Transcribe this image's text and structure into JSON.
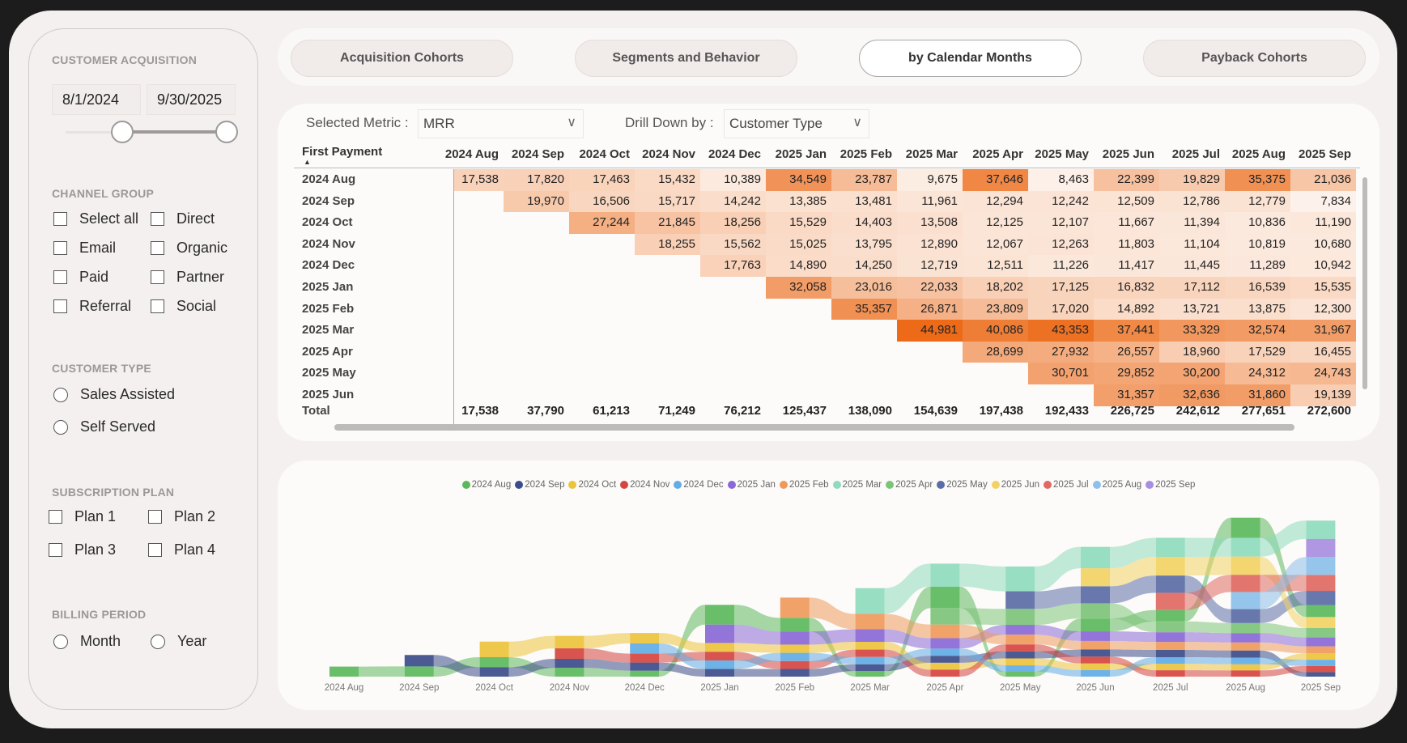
{
  "sidebar": {
    "acquisition": {
      "title": "CUSTOMER ACQUISITION",
      "start_date": "8/1/2024",
      "end_date": "9/30/2025"
    },
    "channel": {
      "title": "CHANNEL GROUP",
      "options": [
        "Select all",
        "Direct",
        "Email",
        "Organic",
        "Paid",
        "Partner",
        "Referral",
        "Social"
      ]
    },
    "customer_type": {
      "title": "CUSTOMER TYPE",
      "options": [
        "Sales Assisted",
        "Self Served"
      ]
    },
    "plan": {
      "title": "SUBSCRIPTION PLAN",
      "options": [
        "Plan 1",
        "Plan 2",
        "Plan 3",
        "Plan 4"
      ]
    },
    "billing": {
      "title": "BILLING PERIOD",
      "options": [
        "Month",
        "Year"
      ]
    }
  },
  "tabs": [
    {
      "label": "Acquisition Cohorts",
      "active": false
    },
    {
      "label": "Segments and Behavior",
      "active": false
    },
    {
      "label": "by Calendar Months",
      "active": true
    },
    {
      "label": "Payback Cohorts",
      "active": false
    }
  ],
  "controls": {
    "metric_label": "Selected Metric :",
    "metric_value": "MRR",
    "drill_label": "Drill Down by :",
    "drill_value": "Customer Type"
  },
  "table": {
    "row_header": "First Payment",
    "total_label": "Total",
    "heat_colors": [
      "#fdf4ee",
      "#ec6a18"
    ],
    "columns": [
      "2024 Aug",
      "2024 Sep",
      "2024 Oct",
      "2024 Nov",
      "2024 Dec",
      "2025 Jan",
      "2025 Feb",
      "2025 Mar",
      "2025 Apr",
      "2025 May",
      "2025 Jun",
      "2025 Jul",
      "2025 Aug",
      "2025 Sep"
    ],
    "rows": [
      {
        "label": "2024 Aug",
        "values": [
          "17,538",
          "17,820",
          "17,463",
          "15,432",
          "10,389",
          "34,549",
          "23,787",
          "9,675",
          "37,646",
          "8,463",
          "22,399",
          "19,829",
          "35,375",
          "21,036"
        ]
      },
      {
        "label": "2024 Sep",
        "values": [
          "",
          "19,970",
          "16,506",
          "15,717",
          "14,242",
          "13,385",
          "13,481",
          "11,961",
          "12,294",
          "12,242",
          "12,509",
          "12,786",
          "12,779",
          "7,834"
        ]
      },
      {
        "label": "2024 Oct",
        "values": [
          "",
          "",
          "27,244",
          "21,845",
          "18,256",
          "15,529",
          "14,403",
          "13,508",
          "12,125",
          "12,107",
          "11,667",
          "11,394",
          "10,836",
          "11,190"
        ]
      },
      {
        "label": "2024 Nov",
        "values": [
          "",
          "",
          "",
          "18,255",
          "15,562",
          "15,025",
          "13,795",
          "12,890",
          "12,067",
          "12,263",
          "11,803",
          "11,104",
          "10,819",
          "10,680"
        ]
      },
      {
        "label": "2024 Dec",
        "values": [
          "",
          "",
          "",
          "",
          "17,763",
          "14,890",
          "14,250",
          "12,719",
          "12,511",
          "11,226",
          "11,417",
          "11,445",
          "11,289",
          "10,942"
        ]
      },
      {
        "label": "2025 Jan",
        "values": [
          "",
          "",
          "",
          "",
          "",
          "32,058",
          "23,016",
          "22,033",
          "18,202",
          "17,125",
          "16,832",
          "17,112",
          "16,539",
          "15,535"
        ]
      },
      {
        "label": "2025 Feb",
        "values": [
          "",
          "",
          "",
          "",
          "",
          "",
          "35,357",
          "26,871",
          "23,809",
          "17,020",
          "14,892",
          "13,721",
          "13,875",
          "12,300"
        ]
      },
      {
        "label": "2025 Mar",
        "values": [
          "",
          "",
          "",
          "",
          "",
          "",
          "",
          "44,981",
          "40,086",
          "43,353",
          "37,441",
          "33,329",
          "32,574",
          "31,967"
        ]
      },
      {
        "label": "2025 Apr",
        "values": [
          "",
          "",
          "",
          "",
          "",
          "",
          "",
          "",
          "28,699",
          "27,932",
          "26,557",
          "18,960",
          "17,529",
          "16,455"
        ]
      },
      {
        "label": "2025 May",
        "values": [
          "",
          "",
          "",
          "",
          "",
          "",
          "",
          "",
          "",
          "30,701",
          "29,852",
          "30,200",
          "24,312",
          "24,743"
        ]
      },
      {
        "label": "2025 Jun",
        "values": [
          "",
          "",
          "",
          "",
          "",
          "",
          "",
          "",
          "",
          "",
          "31,357",
          "32,636",
          "31,860",
          "19,139"
        ]
      }
    ],
    "totals": [
      "17,538",
      "37,790",
      "61,213",
      "71,249",
      "76,212",
      "125,437",
      "138,090",
      "154,639",
      "197,438",
      "192,433",
      "226,725",
      "242,612",
      "277,651",
      "272,600"
    ]
  },
  "chart_data": {
    "type": "bar",
    "style": "ribbon",
    "stacked": true,
    "legend_position": "top",
    "grid": false,
    "categories": [
      "2024 Aug",
      "2024 Sep",
      "2024 Oct",
      "2024 Nov",
      "2024 Dec",
      "2025 Jan",
      "2025 Feb",
      "2025 Mar",
      "2025 Apr",
      "2025 May",
      "2025 Jun",
      "2025 Jul",
      "2025 Aug",
      "2025 Sep"
    ],
    "ylim": [
      0,
      280000
    ],
    "series": [
      {
        "name": "2024 Aug",
        "color": "#5cb85c",
        "values": [
          17538,
          17820,
          17463,
          15432,
          10389,
          34549,
          23787,
          9675,
          37646,
          8463,
          22399,
          19829,
          35375,
          21036
        ]
      },
      {
        "name": "2024 Sep",
        "color": "#3d4c8a",
        "values": [
          null,
          19970,
          16506,
          15717,
          14242,
          13385,
          13481,
          11961,
          12294,
          12242,
          12509,
          12786,
          12779,
          7834
        ]
      },
      {
        "name": "2024 Oct",
        "color": "#ecc33c",
        "values": [
          null,
          null,
          27244,
          21845,
          18256,
          15529,
          14403,
          13508,
          12125,
          12107,
          11667,
          11394,
          10836,
          11190
        ]
      },
      {
        "name": "2024 Nov",
        "color": "#d64540",
        "values": [
          null,
          null,
          null,
          18255,
          15562,
          15025,
          13795,
          12890,
          12067,
          12263,
          11803,
          11104,
          10819,
          10680
        ]
      },
      {
        "name": "2024 Dec",
        "color": "#62ade6",
        "values": [
          null,
          null,
          null,
          null,
          17763,
          14890,
          14250,
          12719,
          12511,
          11226,
          11417,
          11445,
          11289,
          10942
        ]
      },
      {
        "name": "2025 Jan",
        "color": "#8a68d6",
        "values": [
          null,
          null,
          null,
          null,
          null,
          32058,
          23016,
          22033,
          18202,
          17125,
          16832,
          17112,
          16539,
          15535
        ]
      },
      {
        "name": "2025 Feb",
        "color": "#ef9a5c",
        "values": [
          null,
          null,
          null,
          null,
          null,
          null,
          35357,
          26871,
          23809,
          17020,
          14892,
          13721,
          13875,
          12300
        ]
      },
      {
        "name": "2025 Mar",
        "color": "#8edbbd",
        "values": [
          null,
          null,
          null,
          null,
          null,
          null,
          null,
          44981,
          40086,
          43353,
          37441,
          33329,
          32574,
          31967
        ]
      },
      {
        "name": "2025 Apr",
        "color": "#7dc47a",
        "values": [
          null,
          null,
          null,
          null,
          null,
          null,
          null,
          null,
          28699,
          27932,
          26557,
          18960,
          17529,
          16455
        ]
      },
      {
        "name": "2025 May",
        "color": "#5b6da6",
        "values": [
          null,
          null,
          null,
          null,
          null,
          null,
          null,
          null,
          null,
          30701,
          29852,
          30200,
          24312,
          24743
        ]
      },
      {
        "name": "2025 Jun",
        "color": "#f2d264",
        "values": [
          null,
          null,
          null,
          null,
          null,
          null,
          null,
          null,
          null,
          null,
          31357,
          32636,
          31860,
          19139
        ]
      },
      {
        "name": "2025 Jul",
        "color": "#e06a63",
        "values": [
          null,
          null,
          null,
          null,
          null,
          null,
          null,
          null,
          null,
          null,
          null,
          30096,
          30000,
          28000
        ]
      },
      {
        "name": "2025 Aug",
        "color": "#8dc0ea",
        "values": [
          null,
          null,
          null,
          null,
          null,
          null,
          null,
          null,
          null,
          null,
          null,
          null,
          29864,
          31000
        ]
      },
      {
        "name": "2025 Sep",
        "color": "#a88ee0",
        "values": [
          null,
          null,
          null,
          null,
          null,
          null,
          null,
          null,
          null,
          null,
          null,
          null,
          null,
          31779
        ]
      }
    ]
  }
}
